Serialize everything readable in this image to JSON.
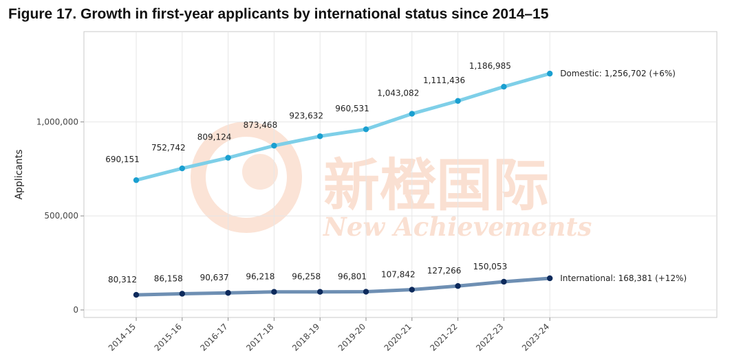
{
  "figure_title": "Figure 17. Growth in first-year applicants by international status since 2014–15",
  "watermark": {
    "chinese": "新橙国际",
    "english": "New Achievements"
  },
  "chart_data": {
    "type": "line",
    "title": "Figure 17. Growth in first-year applicants by international status since 2014–15",
    "xlabel": "",
    "ylabel": "Applicants",
    "categories": [
      "2014-15",
      "2015-16",
      "2016-17",
      "2017-18",
      "2018-19",
      "2019-20",
      "2020-21",
      "2021-22",
      "2022-23",
      "2023-24"
    ],
    "ylim": [
      -40000,
      1480000
    ],
    "yticks": [
      0,
      500000,
      1000000
    ],
    "ytick_labels": [
      "0",
      "500,000",
      "1,000,000"
    ],
    "grid": true,
    "series": [
      {
        "name": "Domestic",
        "color": "#7ecfe8",
        "marker_color": "#1a9fd0",
        "values": [
          690151,
          752742,
          809124,
          873468,
          923632,
          960531,
          1043082,
          1111436,
          1186985,
          1256702
        ],
        "point_labels": [
          "690,151",
          "752,742",
          "809,124",
          "873,468",
          "923,632",
          "960,531",
          "1,043,082",
          "1,111,436",
          "1,186,985",
          ""
        ],
        "end_label": "Domestic: 1,256,702 (+6%)"
      },
      {
        "name": "International",
        "color": "#6e8fb3",
        "marker_color": "#0d2a5c",
        "values": [
          80312,
          86158,
          90637,
          96218,
          96258,
          96801,
          107842,
          127266,
          150053,
          168381
        ],
        "point_labels": [
          "80,312",
          "86,158",
          "90,637",
          "96,218",
          "96,258",
          "96,801",
          "107,842",
          "127,266",
          "150,053",
          ""
        ],
        "end_label": "International: 168,381 (+12%)"
      }
    ]
  }
}
